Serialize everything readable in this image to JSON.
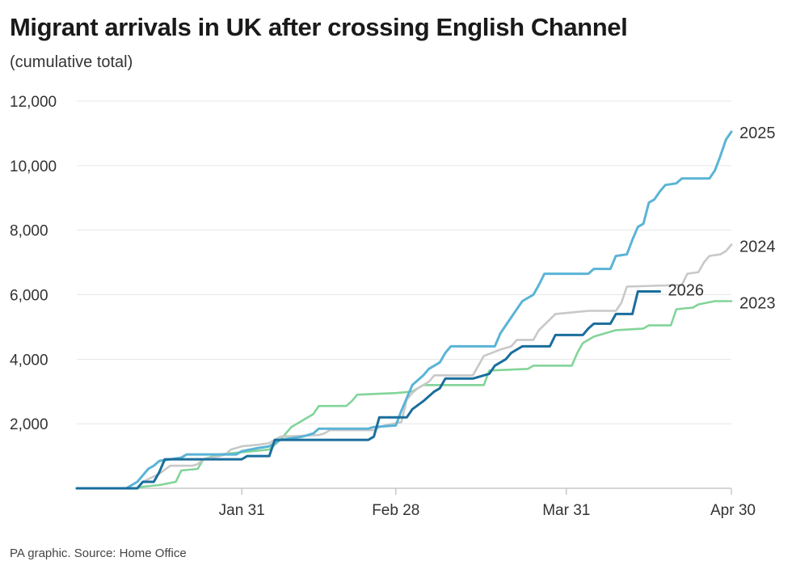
{
  "chart_data": {
    "type": "line",
    "title": "Migrant arrivals in UK after crossing English Channel",
    "subtitle": "(cumulative total)",
    "source": "PA graphic. Source: Home Office",
    "xlabel": "",
    "ylabel": "",
    "x_unit": "day of year",
    "xlim": [
      1,
      120
    ],
    "ylim": [
      0,
      12000
    ],
    "x_ticks": [
      {
        "label": "Jan 31",
        "value": 31
      },
      {
        "label": "Feb 28",
        "value": 59
      },
      {
        "label": "Mar 31",
        "value": 90
      },
      {
        "label": "Apr 30",
        "value": 120
      }
    ],
    "y_ticks": [
      {
        "label": "2,000",
        "value": 2000
      },
      {
        "label": "4,000",
        "value": 4000
      },
      {
        "label": "6,000",
        "value": 6000
      },
      {
        "label": "8,000",
        "value": 8000
      },
      {
        "label": "10,000",
        "value": 10000
      },
      {
        "label": "12,000",
        "value": 12000
      }
    ],
    "grid": "horizontal",
    "series": [
      {
        "name": "2023",
        "color": "#82d49a",
        "points": [
          [
            1,
            0
          ],
          [
            12,
            0
          ],
          [
            13,
            50
          ],
          [
            16,
            100
          ],
          [
            19,
            200
          ],
          [
            20,
            550
          ],
          [
            23,
            600
          ],
          [
            24,
            900
          ],
          [
            27,
            1050
          ],
          [
            30,
            1100
          ],
          [
            33,
            1150
          ],
          [
            36,
            1200
          ],
          [
            37,
            1350
          ],
          [
            38,
            1500
          ],
          [
            39,
            1700
          ],
          [
            40,
            1900
          ],
          [
            42,
            2100
          ],
          [
            44,
            2300
          ],
          [
            45,
            2550
          ],
          [
            50,
            2550
          ],
          [
            51,
            2700
          ],
          [
            52,
            2900
          ],
          [
            59,
            2950
          ],
          [
            62,
            3000
          ],
          [
            63,
            3100
          ],
          [
            64,
            3200
          ],
          [
            75,
            3200
          ],
          [
            76,
            3650
          ],
          [
            83,
            3700
          ],
          [
            84,
            3800
          ],
          [
            91,
            3800
          ],
          [
            92,
            4200
          ],
          [
            93,
            4500
          ],
          [
            95,
            4700
          ],
          [
            99,
            4900
          ],
          [
            104,
            4950
          ],
          [
            105,
            5050
          ],
          [
            109,
            5050
          ],
          [
            110,
            5550
          ],
          [
            113,
            5600
          ],
          [
            114,
            5700
          ],
          [
            117,
            5800
          ],
          [
            120,
            5800
          ]
        ]
      },
      {
        "name": "2024",
        "color": "#c8c8c8",
        "points": [
          [
            1,
            0
          ],
          [
            12,
            0
          ],
          [
            13,
            200
          ],
          [
            16,
            450
          ],
          [
            18,
            700
          ],
          [
            22,
            700
          ],
          [
            23,
            750
          ],
          [
            24,
            900
          ],
          [
            27,
            1000
          ],
          [
            28,
            1050
          ],
          [
            29,
            1200
          ],
          [
            31,
            1300
          ],
          [
            34,
            1350
          ],
          [
            36,
            1400
          ],
          [
            37,
            1500
          ],
          [
            38,
            1600
          ],
          [
            45,
            1650
          ],
          [
            46,
            1700
          ],
          [
            47,
            1800
          ],
          [
            55,
            1800
          ],
          [
            56,
            1900
          ],
          [
            57,
            1950
          ],
          [
            60,
            2050
          ],
          [
            61,
            2750
          ],
          [
            62,
            2950
          ],
          [
            63,
            3100
          ],
          [
            65,
            3300
          ],
          [
            66,
            3500
          ],
          [
            73,
            3500
          ],
          [
            74,
            3800
          ],
          [
            75,
            4100
          ],
          [
            78,
            4300
          ],
          [
            80,
            4400
          ],
          [
            81,
            4600
          ],
          [
            84,
            4600
          ],
          [
            85,
            4900
          ],
          [
            88,
            5400
          ],
          [
            94,
            5500
          ],
          [
            99,
            5500
          ],
          [
            100,
            5750
          ],
          [
            101,
            6250
          ],
          [
            111,
            6300
          ],
          [
            112,
            6650
          ],
          [
            114,
            6700
          ],
          [
            115,
            7000
          ],
          [
            116,
            7200
          ],
          [
            118,
            7250
          ],
          [
            119,
            7350
          ],
          [
            120,
            7550
          ]
        ]
      },
      {
        "name": "2025",
        "color": "#5ab4d6",
        "points": [
          [
            1,
            0
          ],
          [
            10,
            0
          ],
          [
            11,
            100
          ],
          [
            12,
            200
          ],
          [
            13,
            400
          ],
          [
            14,
            600
          ],
          [
            15,
            700
          ],
          [
            16,
            850
          ],
          [
            20,
            950
          ],
          [
            21,
            1050
          ],
          [
            30,
            1050
          ],
          [
            31,
            1150
          ],
          [
            34,
            1250
          ],
          [
            36,
            1300
          ],
          [
            37,
            1400
          ],
          [
            38,
            1500
          ],
          [
            42,
            1600
          ],
          [
            44,
            1700
          ],
          [
            45,
            1850
          ],
          [
            54,
            1850
          ],
          [
            55,
            1900
          ],
          [
            59,
            1950
          ],
          [
            60,
            2400
          ],
          [
            61,
            2800
          ],
          [
            62,
            3200
          ],
          [
            64,
            3500
          ],
          [
            65,
            3700
          ],
          [
            67,
            3900
          ],
          [
            68,
            4200
          ],
          [
            69,
            4400
          ],
          [
            77,
            4400
          ],
          [
            78,
            4800
          ],
          [
            80,
            5300
          ],
          [
            82,
            5800
          ],
          [
            84,
            6000
          ],
          [
            85,
            6300
          ],
          [
            86,
            6650
          ],
          [
            94,
            6650
          ],
          [
            95,
            6800
          ],
          [
            98,
            6800
          ],
          [
            99,
            7200
          ],
          [
            101,
            7250
          ],
          [
            102,
            7700
          ],
          [
            103,
            8100
          ],
          [
            104,
            8200
          ],
          [
            105,
            8850
          ],
          [
            106,
            8950
          ],
          [
            107,
            9200
          ],
          [
            108,
            9400
          ],
          [
            110,
            9450
          ],
          [
            111,
            9600
          ],
          [
            116,
            9600
          ],
          [
            117,
            9850
          ],
          [
            118,
            10300
          ],
          [
            119,
            10800
          ],
          [
            120,
            11050
          ]
        ]
      },
      {
        "name": "2026",
        "color": "#1a6e9c",
        "points": [
          [
            1,
            0
          ],
          [
            12,
            0
          ],
          [
            13,
            200
          ],
          [
            15,
            200
          ],
          [
            16,
            500
          ],
          [
            17,
            900
          ],
          [
            31,
            900
          ],
          [
            32,
            1000
          ],
          [
            36,
            1000
          ],
          [
            37,
            1500
          ],
          [
            54,
            1500
          ],
          [
            55,
            1600
          ],
          [
            56,
            2200
          ],
          [
            61,
            2200
          ],
          [
            62,
            2450
          ],
          [
            64,
            2700
          ],
          [
            66,
            3000
          ],
          [
            67,
            3100
          ],
          [
            68,
            3400
          ],
          [
            73,
            3400
          ],
          [
            74,
            3450
          ],
          [
            76,
            3550
          ],
          [
            77,
            3800
          ],
          [
            79,
            4000
          ],
          [
            80,
            4200
          ],
          [
            82,
            4400
          ],
          [
            87,
            4400
          ],
          [
            88,
            4750
          ],
          [
            93,
            4750
          ],
          [
            94,
            4950
          ],
          [
            95,
            5100
          ],
          [
            98,
            5100
          ],
          [
            99,
            5400
          ],
          [
            102,
            5400
          ],
          [
            103,
            6100
          ],
          [
            107,
            6100
          ]
        ]
      }
    ]
  }
}
